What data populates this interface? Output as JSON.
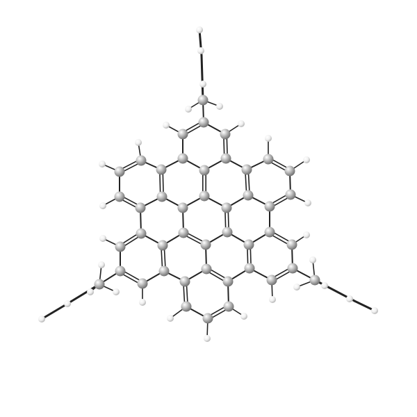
{
  "diagram": {
    "kind": "ball-and-stick molecular model",
    "background_color": "#ffffff",
    "carbon_color": "#a8a8a8",
    "hydrogen_color": "#ececec",
    "bond_color": "#222222"
  }
}
